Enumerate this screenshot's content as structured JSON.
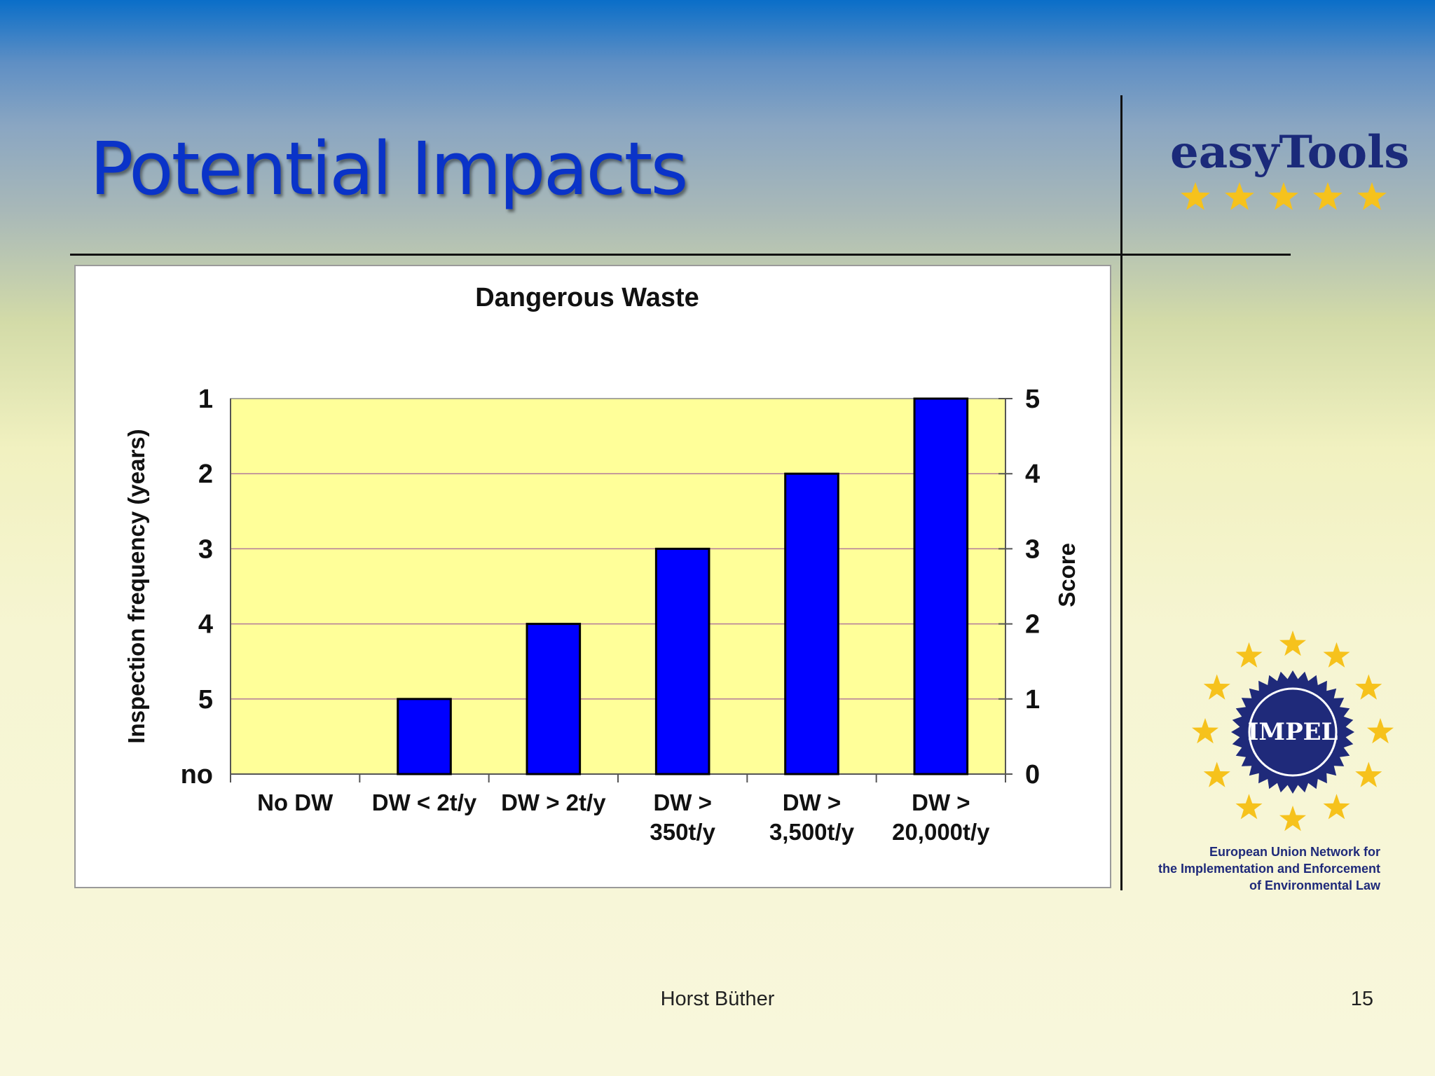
{
  "slide": {
    "title": "Potential Impacts",
    "brand": "easyTools",
    "author": "Horst Büther",
    "page_number": "15"
  },
  "logo": {
    "name": "IMPEL",
    "caption": "European Union Network for\nthe Implementation and Enforcement\nof Environmental Law",
    "star_color": "#f6c21c",
    "gear_color": "#1f2a7a"
  },
  "colors": {
    "title": "#0a33c8",
    "bar": "#0000ff",
    "plot_bg": "#ffff99",
    "gridline": "#b27a9a"
  },
  "chart_data": {
    "type": "bar",
    "title": "Dangerous Waste",
    "categories": [
      "No DW",
      "DW < 2t/y",
      "DW > 2t/y",
      "DW >\n350t/y",
      "DW >\n3,500t/y",
      "DW >\n20,000t/y"
    ],
    "values": [
      0,
      1,
      2,
      3,
      4,
      5
    ],
    "ylim": [
      0,
      5
    ],
    "ylabel": "Inspection frequency (years)",
    "y2label": "Score",
    "left_ticks": [
      "no",
      "5",
      "4",
      "3",
      "2",
      "1"
    ],
    "right_ticks": [
      "0",
      "1",
      "2",
      "3",
      "4",
      "5"
    ],
    "grid": true,
    "legend": "none"
  }
}
